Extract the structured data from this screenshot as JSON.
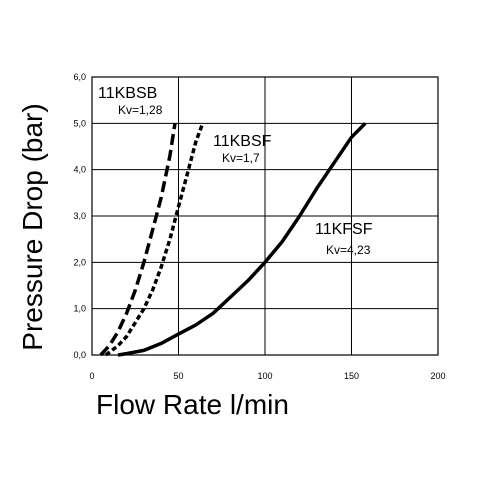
{
  "chart_data": {
    "type": "line",
    "title": "",
    "xlabel": "Flow Rate l/min",
    "ylabel": "Pressure Drop (bar)",
    "xlim": [
      0,
      200
    ],
    "ylim": [
      0,
      6
    ],
    "grid": true,
    "x_ticks": [
      "0",
      "50",
      "100",
      "150",
      "200"
    ],
    "y_ticks": [
      "0,0",
      "1,0",
      "2,0",
      "3,0",
      "4,0",
      "5,0",
      "6,0"
    ],
    "series": [
      {
        "name": "11KBSB",
        "kv": "Kv=1,28",
        "style": "dashed-long",
        "x": [
          5,
          10,
          15,
          20,
          25,
          30,
          35,
          40,
          45,
          48
        ],
        "y": [
          0.0,
          0.2,
          0.5,
          0.9,
          1.4,
          2.0,
          2.7,
          3.4,
          4.3,
          5.0
        ]
      },
      {
        "name": "11KBSF",
        "kv": "Kv=1,7",
        "style": "dashed-short",
        "x": [
          8,
          15,
          20,
          25,
          30,
          35,
          40,
          45,
          50,
          55,
          60,
          64
        ],
        "y": [
          0.0,
          0.2,
          0.4,
          0.7,
          1.0,
          1.4,
          1.9,
          2.5,
          3.2,
          3.9,
          4.6,
          5.0
        ]
      },
      {
        "name": "11KFSF",
        "kv": "Kv=4,23",
        "style": "solid",
        "x": [
          15,
          20,
          30,
          40,
          50,
          60,
          70,
          80,
          90,
          100,
          110,
          120,
          130,
          140,
          150,
          158
        ],
        "y": [
          0.0,
          0.03,
          0.1,
          0.25,
          0.45,
          0.65,
          0.9,
          1.25,
          1.6,
          2.0,
          2.45,
          3.0,
          3.6,
          4.15,
          4.7,
          5.0
        ]
      }
    ]
  }
}
